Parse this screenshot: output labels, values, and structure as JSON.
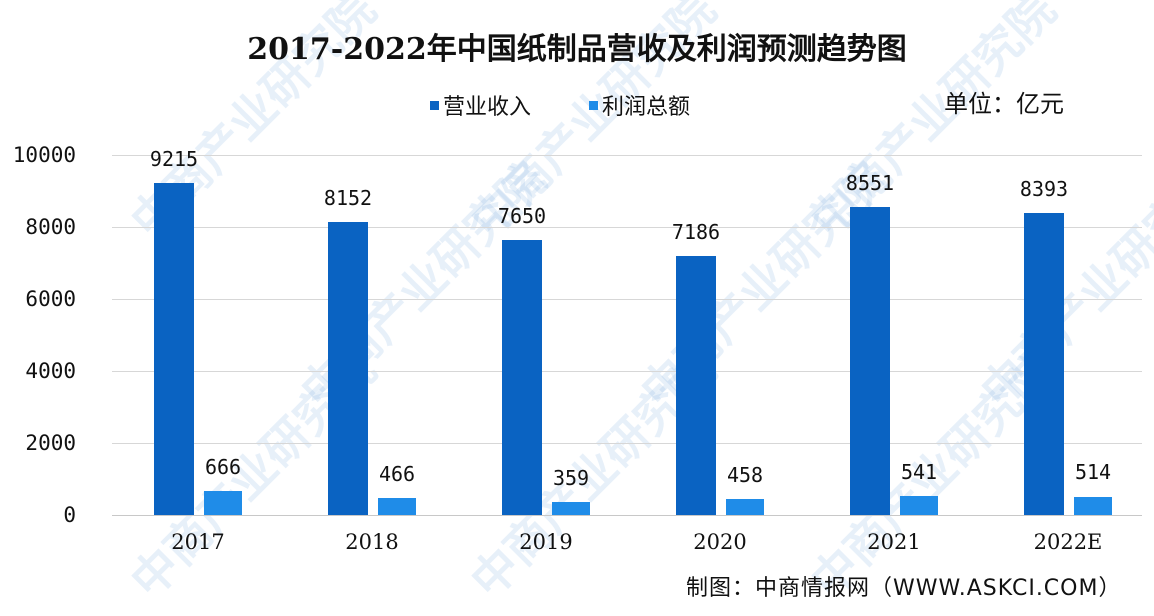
{
  "title": "2017-2022年中国纸制品营收及利润预测趋势图",
  "unit_label": "单位：亿元",
  "footer": "制图：中商情报网（WWW.ASKCI.COM）",
  "watermark": "中商产业研究院",
  "colors": {
    "revenue": "#0a63c2",
    "profit": "#1f8ce8",
    "grid": "#d7d7d7"
  },
  "legend": [
    {
      "label": "营业收入",
      "color": "#0a63c2"
    },
    {
      "label": "利润总额",
      "color": "#1f8ce8"
    }
  ],
  "y_axis": {
    "ticks": [
      "10000",
      "8000",
      "6000",
      "4000",
      "2000",
      "0"
    ]
  },
  "chart_data": {
    "type": "bar",
    "title": "2017-2022年中国纸制品营收及利润预测趋势图",
    "xlabel": "",
    "ylabel": "",
    "unit": "亿元",
    "categories": [
      "2017",
      "2018",
      "2019",
      "2020",
      "2021",
      "2022E"
    ],
    "series": [
      {
        "name": "营业收入",
        "values": [
          9215,
          8152,
          7650,
          7186,
          8551,
          8393
        ]
      },
      {
        "name": "利润总额",
        "values": [
          666,
          466,
          359,
          458,
          541,
          514
        ]
      }
    ],
    "ylim": [
      0,
      10000
    ],
    "yticks": [
      0,
      2000,
      4000,
      6000,
      8000,
      10000
    ],
    "grid": true,
    "legend_position": "top"
  }
}
